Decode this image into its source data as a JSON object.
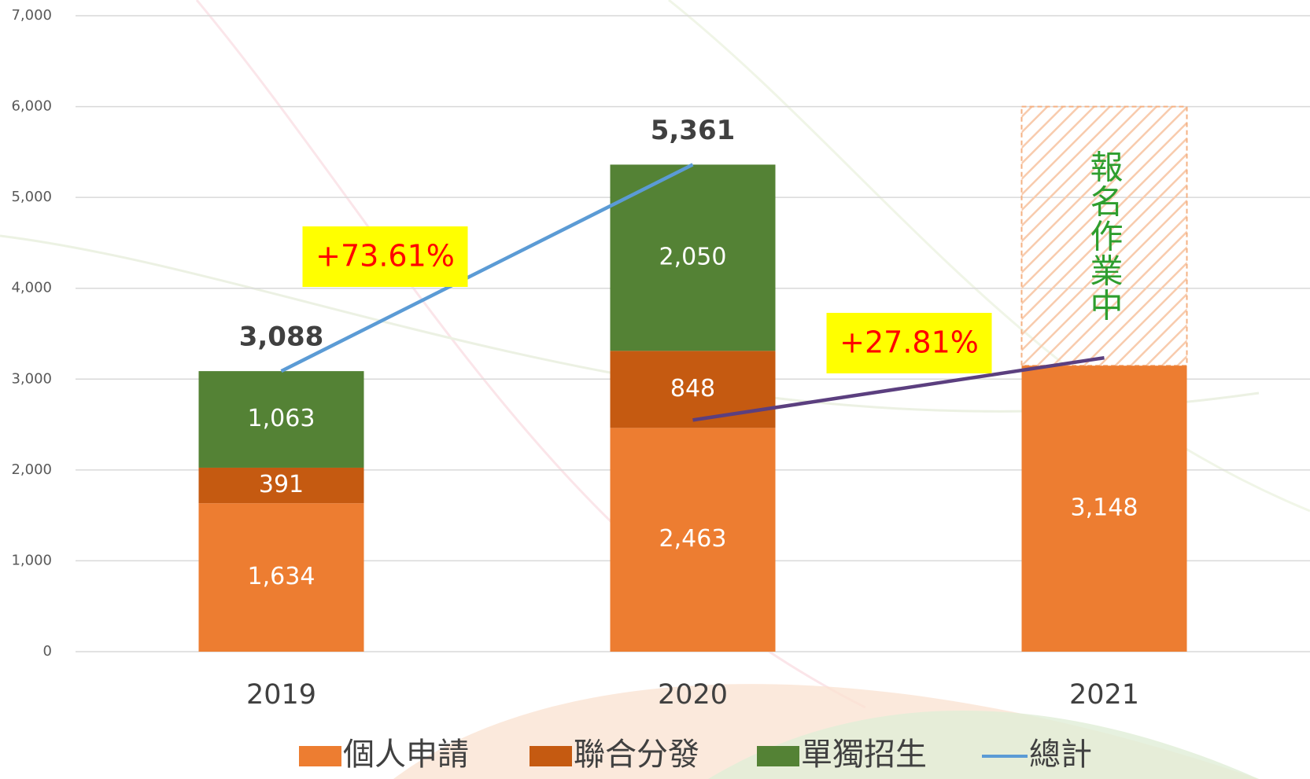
{
  "chart_data": {
    "type": "bar",
    "stacked": true,
    "categories": [
      "2019",
      "2020",
      "2021"
    ],
    "series": [
      {
        "name": "個人申請",
        "color": "#ed7d31",
        "values": [
          1634,
          2463,
          3148
        ],
        "value_labels": [
          "1,634",
          "2,463",
          "3,148"
        ]
      },
      {
        "name": "聯合分發",
        "color": "#c55a11",
        "values": [
          391,
          848,
          null
        ],
        "value_labels": [
          "391",
          "848",
          null
        ]
      },
      {
        "name": "單獨招生",
        "color": "#548235",
        "values": [
          1063,
          2050,
          null
        ],
        "value_labels": [
          "1,063",
          "2,050",
          null
        ]
      },
      {
        "name": "總計",
        "type": "line",
        "color": "#5b9bd5",
        "values": [
          3088,
          5361,
          null
        ],
        "value_labels": [
          "3,088",
          "5,361",
          null
        ]
      }
    ],
    "ylim": [
      0,
      7000
    ],
    "yticks": [
      0,
      {
        "value": 1000,
        "label": "1,000"
      },
      {
        "value": 2000,
        "label": "2,000"
      },
      {
        "value": 3000,
        "label": "3,000"
      },
      {
        "value": 4000,
        "label": "4,000"
      },
      {
        "value": 5000,
        "label": "5,000"
      },
      {
        "value": 6000,
        "label": "6,000"
      },
      {
        "value": 7000,
        "label": "7,000"
      }
    ],
    "grid": true,
    "pending": {
      "label": "報名作業中",
      "top": 6000,
      "color": "#f4b183",
      "text_color": "#2e9e2e"
    },
    "annotations": [
      {
        "label": "+73.61%",
        "color": "#ff0000",
        "background": "#ffff00",
        "line_color": "#5b9bd5"
      },
      {
        "label": "+27.81%",
        "color": "#ff0000",
        "background": "#ffff00",
        "line_color": "#5b3f7f"
      }
    ],
    "legend": "bottom"
  }
}
